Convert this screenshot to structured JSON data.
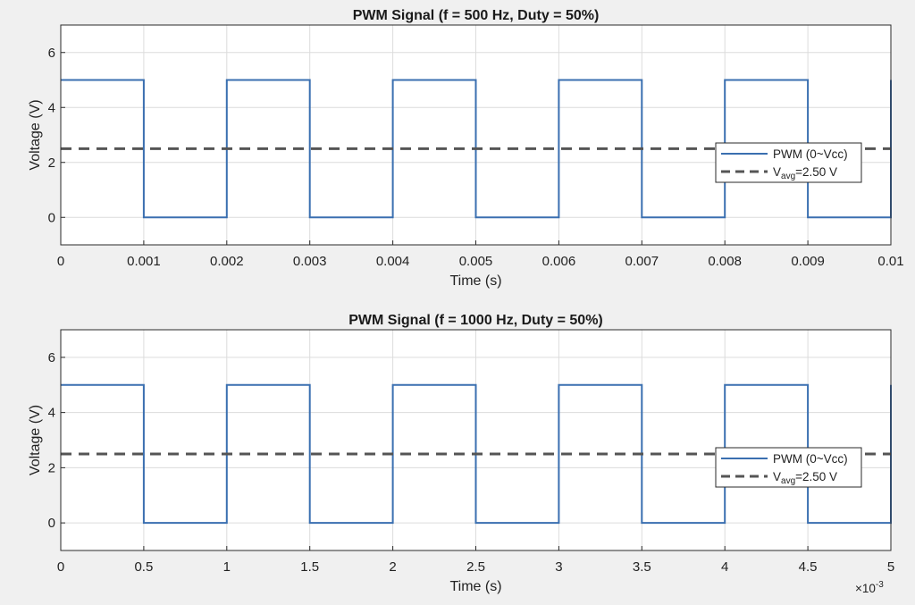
{
  "chart_data": [
    {
      "type": "line",
      "title": "PWM Signal (f = 500 Hz, Duty = 50%)",
      "xlabel": "Time (s)",
      "ylabel": "Voltage (V)",
      "xlim": [
        0,
        0.01
      ],
      "ylim": [
        -1,
        7
      ],
      "xticks": [
        0,
        0.001,
        0.002,
        0.003,
        0.004,
        0.005,
        0.006,
        0.007,
        0.008,
        0.009,
        0.01
      ],
      "xtick_labels": [
        "0",
        "0.001",
        "0.002",
        "0.003",
        "0.004",
        "0.005",
        "0.006",
        "0.007",
        "0.008",
        "0.009",
        "0.01"
      ],
      "yticks": [
        0,
        2,
        4,
        6
      ],
      "ytick_labels": [
        "0",
        "2",
        "4",
        "6"
      ],
      "x_exponent": "",
      "grid": true,
      "legend_position": "right",
      "series": [
        {
          "name": "PWM (0~Vcc)",
          "style": "solid",
          "color": "#3a6fb0",
          "x": [
            0,
            0.001,
            0.001,
            0.002,
            0.002,
            0.003,
            0.003,
            0.004,
            0.004,
            0.005,
            0.005,
            0.006,
            0.006,
            0.007,
            0.007,
            0.008,
            0.008,
            0.009,
            0.009,
            0.01,
            0.01
          ],
          "y": [
            5,
            5,
            0,
            0,
            5,
            5,
            0,
            0,
            5,
            5,
            0,
            0,
            5,
            5,
            0,
            0,
            5,
            5,
            0,
            0,
            5
          ]
        },
        {
          "name": "V",
          "name_sub": "avg",
          "name_suffix": "=2.50  V",
          "style": "dashed",
          "color": "#555555",
          "x": [
            0,
            0.01
          ],
          "y": [
            2.5,
            2.5
          ]
        }
      ]
    },
    {
      "type": "line",
      "title": "PWM Signal (f = 1000 Hz, Duty = 50%)",
      "xlabel": "Time (s)",
      "ylabel": "Voltage (V)",
      "xlim": [
        0,
        5
      ],
      "ylim": [
        -1,
        7
      ],
      "xticks": [
        0,
        0.5,
        1,
        1.5,
        2,
        2.5,
        3,
        3.5,
        4,
        4.5,
        5
      ],
      "xtick_labels": [
        "0",
        "0.5",
        "1",
        "1.5",
        "2",
        "2.5",
        "3",
        "3.5",
        "4",
        "4.5",
        "5"
      ],
      "yticks": [
        0,
        2,
        4,
        6
      ],
      "ytick_labels": [
        "0",
        "2",
        "4",
        "6"
      ],
      "x_exponent": "×10",
      "x_exponent_power": "-3",
      "grid": true,
      "legend_position": "right",
      "series": [
        {
          "name": "PWM (0~Vcc)",
          "style": "solid",
          "color": "#3a6fb0",
          "x": [
            0,
            0.5,
            0.5,
            1,
            1,
            1.5,
            1.5,
            2,
            2,
            2.5,
            2.5,
            3,
            3,
            3.5,
            3.5,
            4,
            4,
            4.5,
            4.5,
            5,
            5
          ],
          "y": [
            5,
            5,
            0,
            0,
            5,
            5,
            0,
            0,
            5,
            5,
            0,
            0,
            5,
            5,
            0,
            0,
            5,
            5,
            0,
            0,
            5
          ]
        },
        {
          "name": "V",
          "name_sub": "avg",
          "name_suffix": "=2.50  V",
          "style": "dashed",
          "color": "#555555",
          "x": [
            0,
            5
          ],
          "y": [
            2.5,
            2.5
          ]
        }
      ]
    }
  ]
}
